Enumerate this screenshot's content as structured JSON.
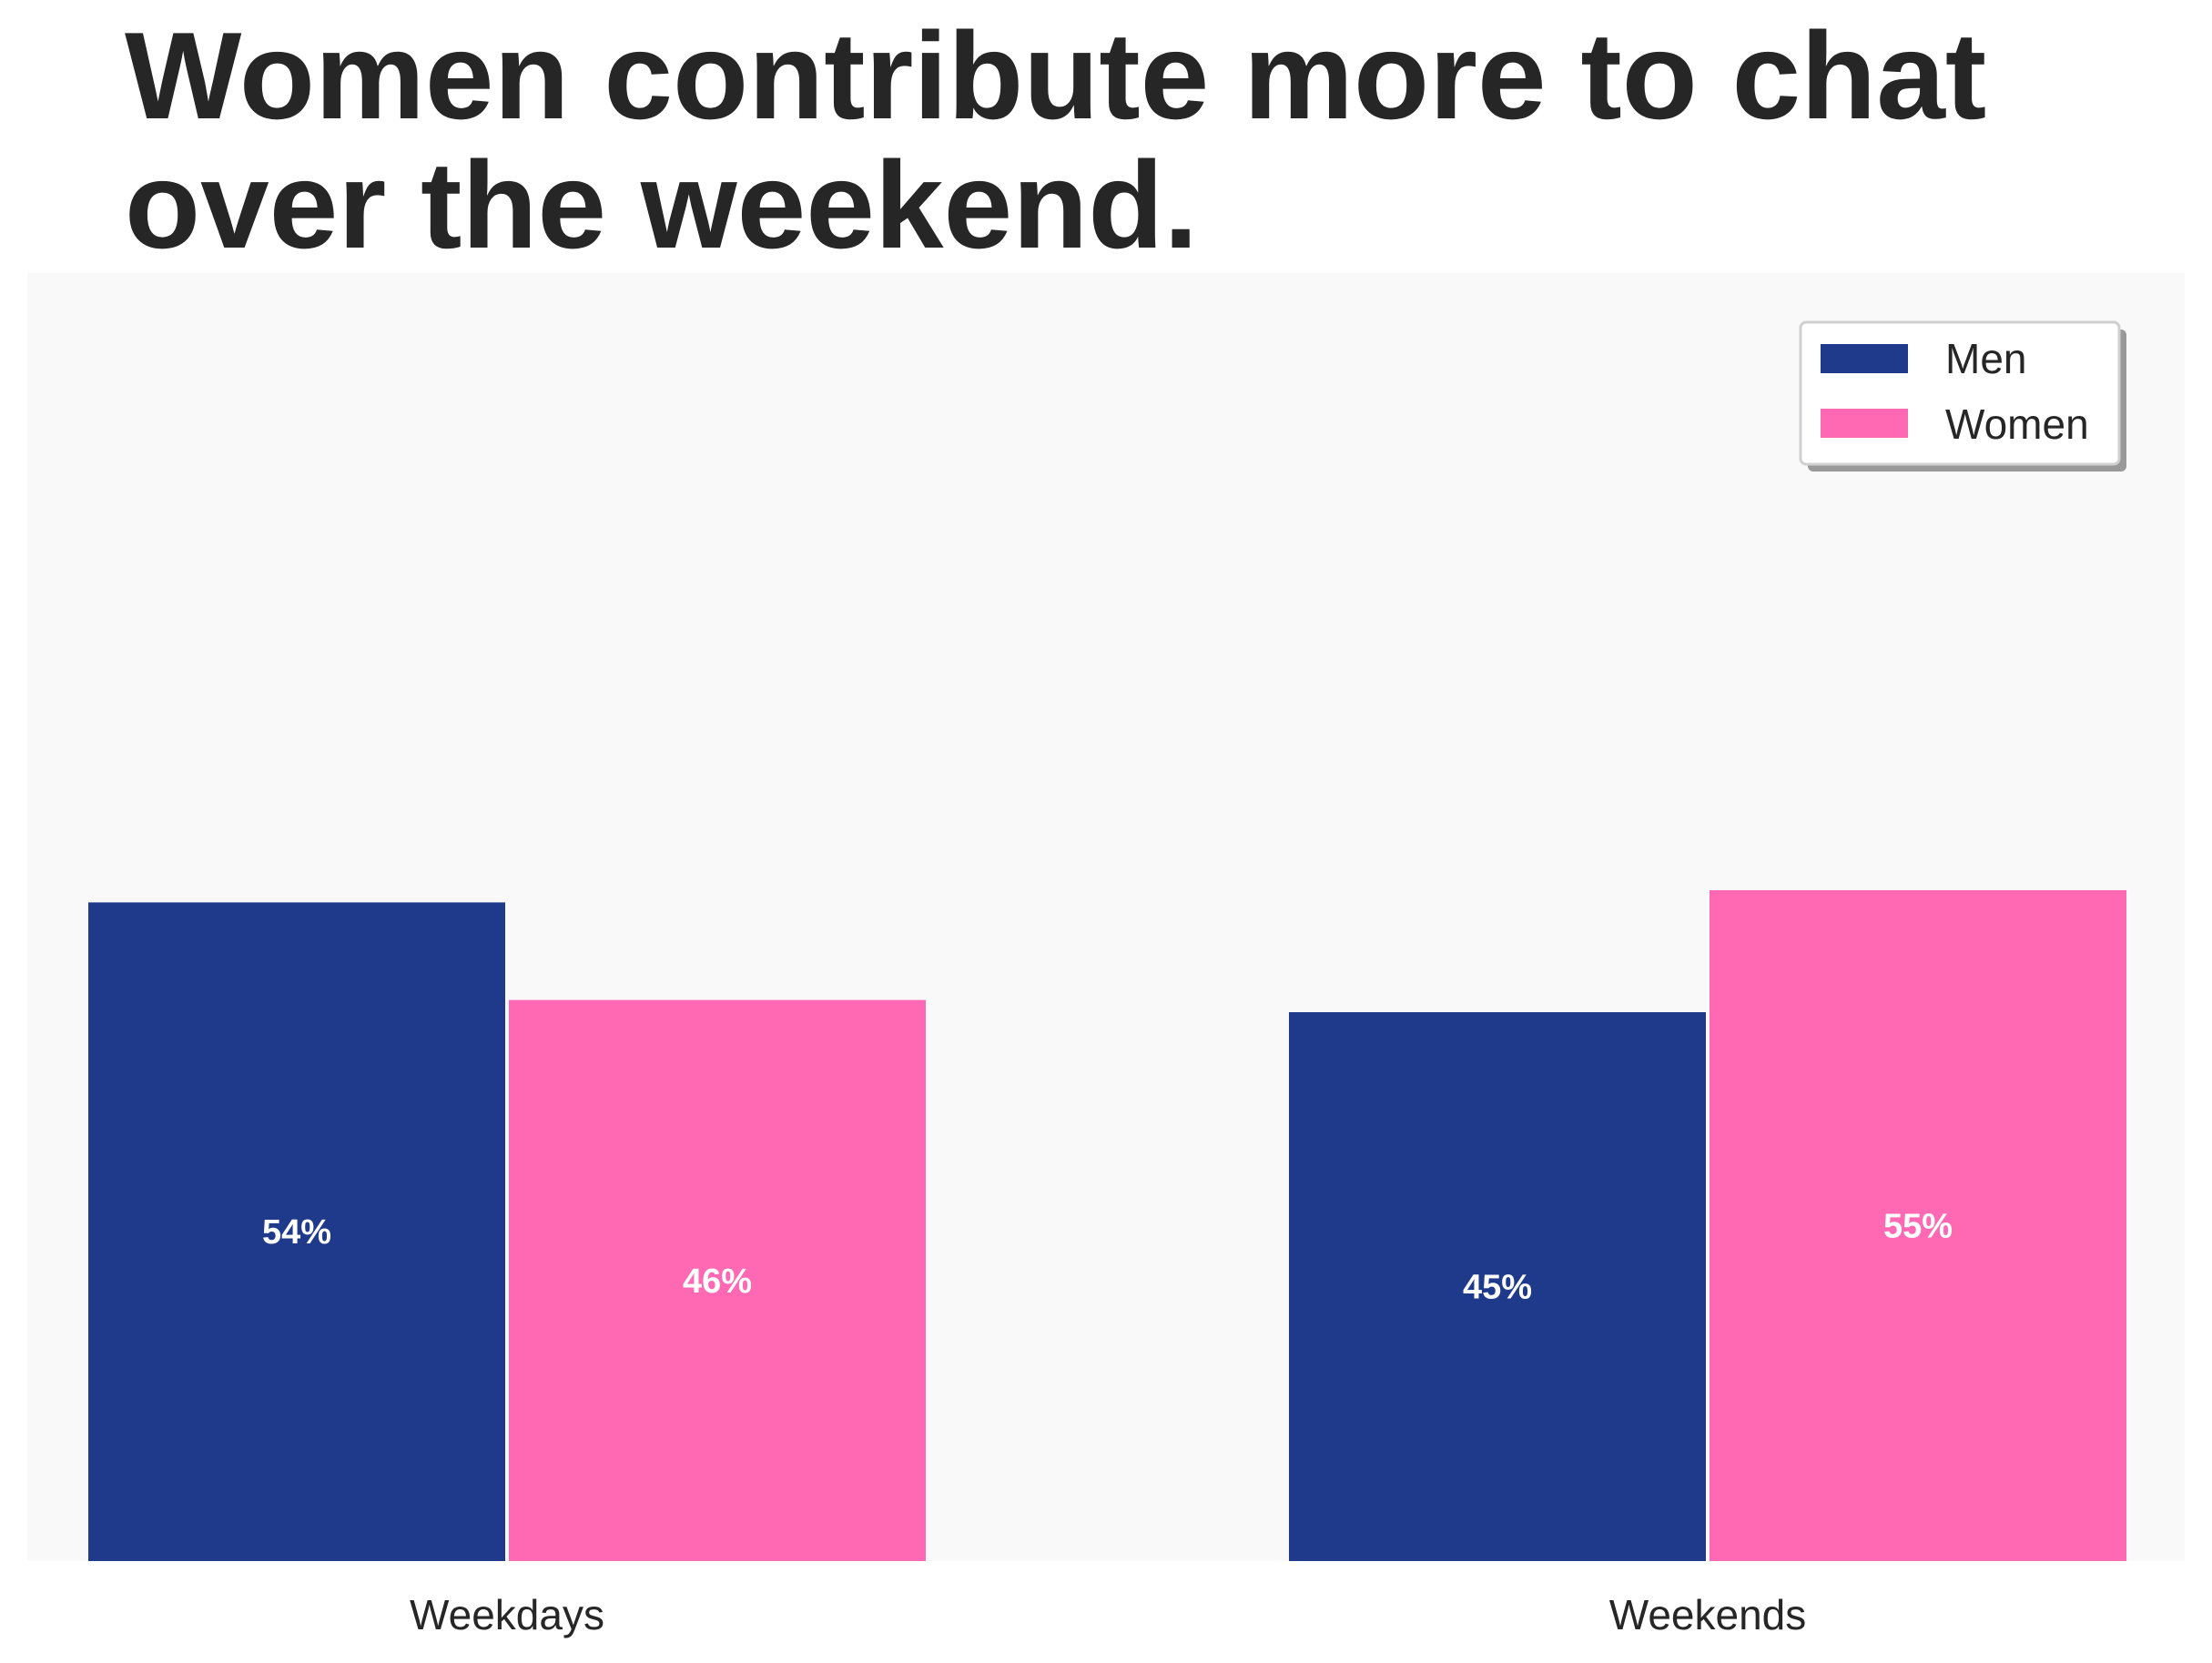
{
  "chart_data": {
    "type": "bar",
    "title_lines": [
      "Women contribute more to chat",
      "over the weekend."
    ],
    "categories": [
      "Weekdays",
      "Weekends"
    ],
    "series": [
      {
        "name": "Men",
        "color": "#1f3a8a",
        "values": [
          54,
          45
        ],
        "labels": [
          "54%",
          "45%"
        ]
      },
      {
        "name": "Women",
        "color": "#ff69b4",
        "values": [
          46,
          55
        ],
        "labels": [
          "46%",
          "55%"
        ]
      }
    ],
    "ylim": [
      0,
      100
    ],
    "xlabel": "",
    "ylabel": "",
    "grid": false,
    "legend_position": "top-right",
    "plot_background": "#f9f9f9"
  }
}
